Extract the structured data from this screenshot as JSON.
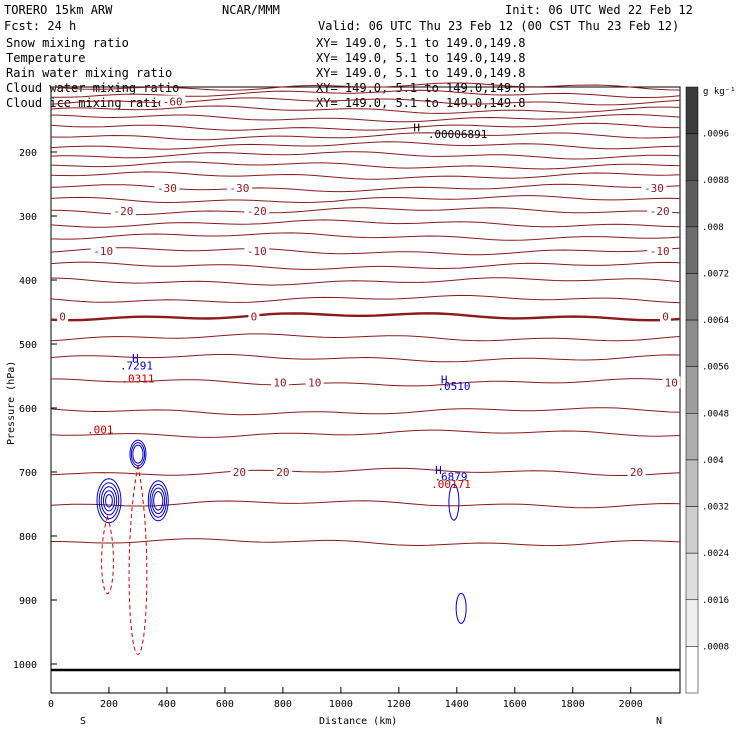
{
  "header": {
    "model": "TORERO  15km ARW",
    "source": "NCAR/MMM",
    "init": "Init: 06 UTC Wed 22 Feb 12",
    "fcst": "Fcst:   24 h",
    "valid": "Valid: 06 UTC Thu 23 Feb 12 (00 CST Thu 23 Feb 12)"
  },
  "colors": {
    "temperature": "#8b1a1a",
    "rain": "#cc0000",
    "cloud_water": "#0000cc",
    "text": "#000000"
  },
  "fields": [
    {
      "name": "Snow mixing ratio",
      "xy": "XY= 149.0,  5.1 to 149.0,149.8",
      "color": "#000000"
    },
    {
      "name": "Temperature",
      "xy": "XY= 149.0,  5.1 to 149.0,149.8",
      "color": "#cc0000"
    },
    {
      "name": "Rain water mixing ratio",
      "xy": "XY= 149.0,  5.1 to 149.0,149.8",
      "color": "#cc0000"
    },
    {
      "name": "Cloud water mixing ratio",
      "xy": "XY= 149.0,  5.1 to 149.0,149.8",
      "color": "#0000cc"
    },
    {
      "name": "Cloud ice mixing ratio",
      "xy": "XY= 149.0,  5.1 to 149.0,149.8",
      "color": "#000000"
    }
  ],
  "chart_data": {
    "type": "contour",
    "xlabel": "Distance (km)",
    "ylabel": "Pressure (hPa)",
    "xlim": [
      0,
      2170
    ],
    "ylim": [
      1050,
      100
    ],
    "x_ticks": [
      0,
      200,
      400,
      600,
      800,
      1000,
      1200,
      1400,
      1600,
      1800,
      2000
    ],
    "y_ticks": [
      200,
      300,
      400,
      500,
      600,
      700,
      800,
      900,
      1000
    ],
    "end_labels": {
      "left": "S",
      "right": "N"
    },
    "temperature_contours": [
      {
        "p": 98
      },
      {
        "p": 109
      },
      {
        "p": 121,
        "label": "-60",
        "label_x": 420
      },
      {
        "p": 134
      },
      {
        "p": 147
      },
      {
        "p": 161
      },
      {
        "p": 175
      },
      {
        "p": 190
      },
      {
        "p": 205
      },
      {
        "p": 221
      },
      {
        "p": 237
      },
      {
        "p": 256,
        "label": "-30",
        "labels_x": [
          400,
          650,
          2080
        ]
      },
      {
        "p": 274
      },
      {
        "p": 292,
        "label": "-20",
        "labels_x": [
          250,
          710,
          2100
        ]
      },
      {
        "p": 312
      },
      {
        "p": 332
      },
      {
        "p": 355,
        "label": "-10",
        "labels_x": [
          180,
          710,
          2100
        ]
      },
      {
        "p": 378
      },
      {
        "p": 402
      },
      {
        "p": 430
      },
      {
        "p": 457,
        "label": "0",
        "labels_x": [
          40,
          700,
          2120
        ],
        "thick": true
      },
      {
        "p": 490
      },
      {
        "p": 522
      },
      {
        "p": 560,
        "label": "10",
        "labels_x": [
          790,
          910,
          2140
        ]
      },
      {
        "p": 605
      },
      {
        "p": 640
      },
      {
        "p": 700,
        "label": "20",
        "labels_x": [
          650,
          800,
          2020
        ]
      },
      {
        "p": 750
      },
      {
        "p": 810
      }
    ],
    "cloud_water_label": {
      "text": ".0510",
      "x": 1390,
      "p": 572
    },
    "cloud_water_label2": {
      "text": ".7291",
      "x": 295,
      "p": 540
    },
    "cloud_water_label3": {
      "text": ".6879",
      "x": 1380,
      "p": 713
    },
    "rain_labels": [
      {
        "text": ".0311",
        "x": 300,
        "p": 560
      },
      {
        "text": ".001",
        "x": 170,
        "p": 640
      },
      {
        "text": ".00171",
        "x": 1380,
        "p": 725
      }
    ],
    "snow_label": {
      "text": ".00006891",
      "x": 1300,
      "p": 178
    },
    "h_marks": [
      {
        "x": 1250,
        "p": 168,
        "color": "#000000"
      },
      {
        "x": 280,
        "p": 528,
        "color": "#0000cc"
      },
      {
        "x": 1345,
        "p": 562,
        "color": "#0000cc"
      },
      {
        "x": 1325,
        "p": 703,
        "color": "#0000cc"
      }
    ],
    "colorbar": {
      "unit": "g kg⁻¹",
      "ticks": [
        ".0096",
        ".0088",
        ".008",
        ".0072",
        ".0064",
        ".0056",
        ".0048",
        ".004",
        ".0032",
        ".0024",
        ".0016",
        ".0008"
      ]
    }
  }
}
